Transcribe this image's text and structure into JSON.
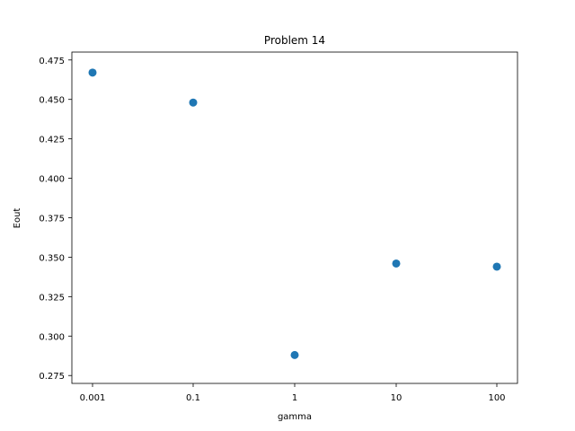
{
  "chart_data": {
    "type": "scatter",
    "title": "Problem 14",
    "xlabel": "gamma",
    "ylabel": "Eout",
    "x_scale": "log",
    "x": [
      0.001,
      0.1,
      1,
      10,
      100
    ],
    "x_tick_labels": [
      "0.001",
      "0.1",
      "1",
      "10",
      "100"
    ],
    "y": [
      0.467,
      0.448,
      0.288,
      0.346,
      0.344
    ],
    "ylim": [
      0.27,
      0.48
    ],
    "y_ticks": [
      0.275,
      0.3,
      0.325,
      0.35,
      0.375,
      0.4,
      0.425,
      0.45,
      0.475
    ],
    "y_tick_labels": [
      "0.275",
      "0.300",
      "0.325",
      "0.350",
      "0.375",
      "0.400",
      "0.425",
      "0.450",
      "0.475"
    ],
    "grid": false,
    "marker_color": "#1f77b4"
  }
}
